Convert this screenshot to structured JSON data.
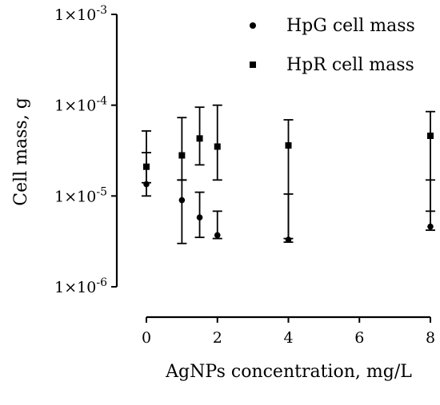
{
  "chart_data": {
    "type": "scatter",
    "title": "",
    "xlabel": "AgNPs concentration, mg/L",
    "ylabel": "Cell mass, g",
    "xlim": [
      0,
      8
    ],
    "ylim": [
      1e-06,
      0.001
    ],
    "yscale": "log",
    "x_ticks": [
      0,
      2,
      4,
      6,
      8
    ],
    "x_tick_labels": [
      "0",
      "2",
      "4",
      "6",
      "8"
    ],
    "y_ticks": [
      1e-06,
      1e-05,
      0.0001,
      0.001
    ],
    "y_tick_labels": [
      {
        "base": "1×10",
        "exp": "-6"
      },
      {
        "base": "1×10",
        "exp": "-5"
      },
      {
        "base": "1×10",
        "exp": "-4"
      },
      {
        "base": "1×10",
        "exp": "-3"
      }
    ],
    "grid": false,
    "legend_position": "top-right",
    "series": [
      {
        "name": "HpG cell mass",
        "marker": "circle",
        "color": "#000000",
        "points": [
          {
            "x": 0,
            "y": 1.35e-05,
            "err_low": 1e-05,
            "err_high": 3e-05
          },
          {
            "x": 1,
            "y": 9e-06,
            "err_low": 3e-06,
            "err_high": 1.5e-05
          },
          {
            "x": 1.5,
            "y": 5.8e-06,
            "err_low": 3.5e-06,
            "err_high": 1.1e-05
          },
          {
            "x": 2,
            "y": 3.7e-06,
            "err_low": 3.4e-06,
            "err_high": 6.8e-06
          },
          {
            "x": 4,
            "y": 3.3e-06,
            "err_low": 3.1e-06,
            "err_high": 1.05e-05
          },
          {
            "x": 8,
            "y": 4.6e-06,
            "err_low": 4.2e-06,
            "err_high": 1.5e-05
          }
        ]
      },
      {
        "name": "HpR cell mass",
        "marker": "square",
        "color": "#000000",
        "points": [
          {
            "x": 0,
            "y": 2.1e-05,
            "err_low": 1.4e-05,
            "err_high": 5.2e-05
          },
          {
            "x": 1,
            "y": 2.8e-05,
            "err_low": 1.5e-05,
            "err_high": 7.3e-05
          },
          {
            "x": 1.5,
            "y": 4.3e-05,
            "err_low": 2.2e-05,
            "err_high": 9.5e-05
          },
          {
            "x": 2,
            "y": 3.5e-05,
            "err_low": 1.5e-05,
            "err_high": 0.0001
          },
          {
            "x": 4,
            "y": 3.6e-05,
            "err_low": 3.4e-06,
            "err_high": 6.9e-05
          },
          {
            "x": 8,
            "y": 4.6e-05,
            "err_low": 6.8e-06,
            "err_high": 8.5e-05
          }
        ]
      }
    ]
  }
}
